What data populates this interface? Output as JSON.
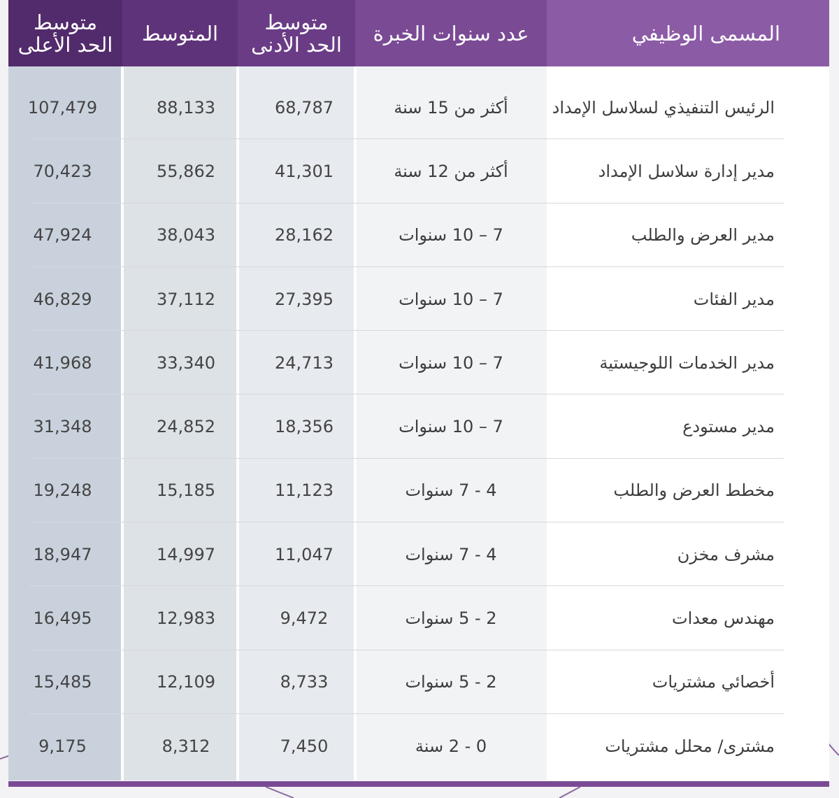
{
  "colors": {
    "header_title": "#8c5ba6",
    "header_exp": "#7a4a95",
    "header_min": "#6a3c86",
    "header_avg": "#5f3379",
    "header_max": "#522b6c",
    "col_max_bg": "#c9d2dc",
    "bottom_bar": "#7a4a95"
  },
  "header": {
    "job_title": "المسمى الوظيفي",
    "experience": "عدد سنوات الخبرة",
    "min_avg": "متوسط\nالحد الأدنى",
    "avg": "المتوسط",
    "max_avg": "متوسط\nالحد الأعلى"
  },
  "rows": [
    {
      "title": "الرئيس التنفيذي لسلاسل الإمداد",
      "experience": "أكثر من 15 سنة",
      "min": "68,787",
      "avg": "88,133",
      "max": "107,479"
    },
    {
      "title": "مدير إدارة سلاسل الإمداد",
      "experience": "أكثر من 12 سنة",
      "min": "41,301",
      "avg": "55,862",
      "max": "70,423"
    },
    {
      "title": "مدير العرض والطلب",
      "experience": "7 – 10 سنوات",
      "min": "28,162",
      "avg": "38,043",
      "max": "47,924"
    },
    {
      "title": "مدير الفئات",
      "experience": "7 – 10 سنوات",
      "min": "27,395",
      "avg": "37,112",
      "max": "46,829"
    },
    {
      "title": "مدير الخدمات اللوجيستية",
      "experience": "7 – 10 سنوات",
      "min": "24,713",
      "avg": "33,340",
      "max": "41,968"
    },
    {
      "title": "مدير مستودع",
      "experience": "7 – 10 سنوات",
      "min": "18,356",
      "avg": "24,852",
      "max": "31,348"
    },
    {
      "title": "مخطط العرض والطلب",
      "experience": "4 - 7 سنوات",
      "min": "11,123",
      "avg": "15,185",
      "max": "19,248"
    },
    {
      "title": "مشرف مخزن",
      "experience": "4 - 7 سنوات",
      "min": "11,047",
      "avg": "14,997",
      "max": "18,947"
    },
    {
      "title": "مهندس معدات",
      "experience": "2 - 5 سنوات",
      "min": "9,472",
      "avg": "12,983",
      "max": "16,495"
    },
    {
      "title": "أخصائي مشتريات",
      "experience": "2 - 5 سنوات",
      "min": "8,733",
      "avg": "12,109",
      "max": "15,485"
    },
    {
      "title": "مشترى/ محلل مشتريات",
      "experience": "0 - 2 سنة",
      "min": "7,450",
      "avg": "8,312",
      "max": "9,175"
    }
  ]
}
